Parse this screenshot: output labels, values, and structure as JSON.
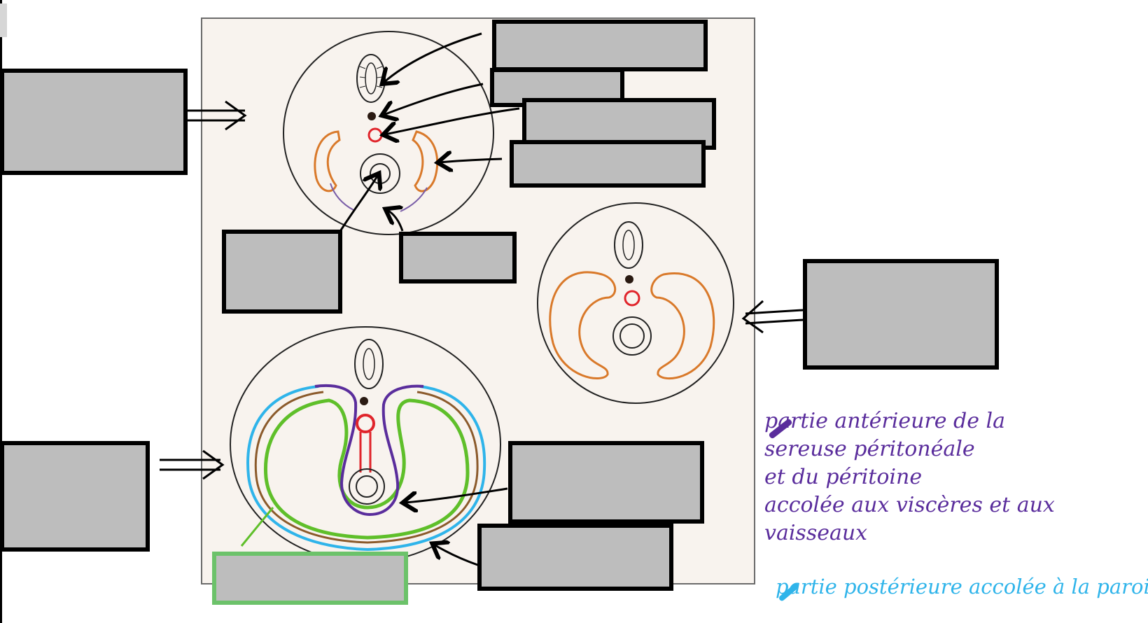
{
  "legend": {
    "purple_lines": [
      "partie antérieure de la",
      "sereuse péritonéale",
      "et du péritoine",
      "accolée aux viscères et aux",
      "vaisseaux"
    ],
    "blue_line": "partie postérieure accolée à la paroi"
  },
  "colors": {
    "purple": "#5a2d9c",
    "blue": "#2fb4ea",
    "green": "#5fbf2a",
    "orange": "#d9792a",
    "red": "#e0242b",
    "brown": "#8b5a2b",
    "label_fill": "#bdbdbd"
  }
}
